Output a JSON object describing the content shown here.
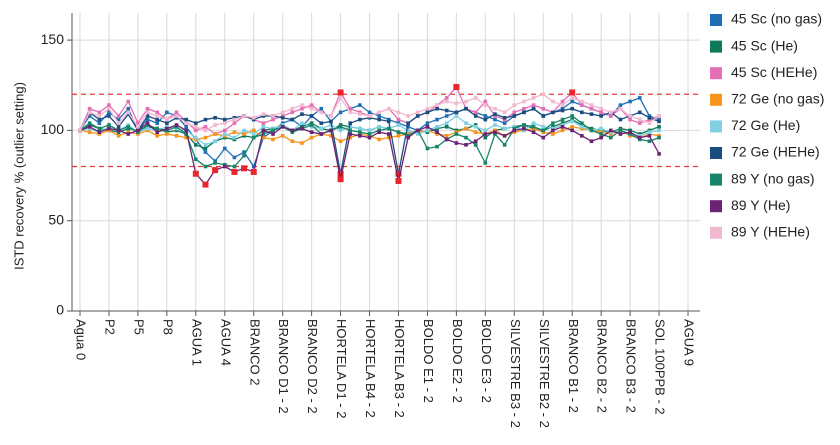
{
  "chart_data": {
    "type": "line",
    "y_label": "ISTD recovery % (outlier setting)",
    "categories": [
      "Agua 0",
      null,
      null,
      "P2",
      null,
      null,
      "P5",
      null,
      null,
      "P8",
      null,
      null,
      "AGUA 1",
      null,
      null,
      "AGUA 4",
      null,
      null,
      "BRANCO 2",
      null,
      null,
      "BRANCO D1 - 2",
      null,
      null,
      "BRANCO D2 - 2",
      null,
      null,
      "HORTELA D1 - 2",
      null,
      null,
      "HORTELA B4 - 2",
      null,
      null,
      "HORTELA B3 - 2",
      null,
      null,
      "BOLDO E1 - 2",
      null,
      null,
      "BOLDO E2 - 2",
      null,
      null,
      "BOLDO E3 - 2",
      null,
      null,
      "SILVESTRE B3 - 2",
      null,
      null,
      "SILVESTRE B2 - 2",
      null,
      null,
      "BRANCO B1 - 2",
      null,
      null,
      "BRANCO B2 - 2",
      null,
      null,
      "BRANCO B3 - 2",
      null,
      null,
      "SOL 100PPB - 2",
      null,
      null,
      "AGUA 9"
    ],
    "ylim": [
      0,
      165
    ],
    "yticks": [
      0,
      50,
      100,
      150
    ],
    "grid": true,
    "reference_lines": [
      80,
      120
    ],
    "reference_color": "#e53935",
    "outlier_color": "#e8262b",
    "series": [
      {
        "name": "45 Sc (no gas)",
        "color": "#1f6fb5",
        "values": [
          100,
          108,
          104,
          110,
          106,
          112,
          100,
          106,
          104,
          110,
          108,
          102,
          95,
          88,
          83,
          90,
          85,
          88,
          80,
          96,
          100,
          104,
          106,
          102,
          108,
          112,
          105,
          110,
          112,
          114,
          110,
          108,
          106,
          104,
          102,
          100,
          104,
          106,
          108,
          110,
          112,
          110,
          108,
          106,
          104,
          108,
          110,
          112,
          108,
          110,
          112,
          116,
          114,
          112,
          110,
          108,
          114,
          116,
          118,
          108,
          106,
          null,
          null,
          null
        ]
      },
      {
        "name": "45 Sc (He)",
        "color": "#0f7a5a",
        "values": [
          100,
          103,
          101,
          100,
          99,
          101,
          100,
          102,
          101,
          99,
          100,
          98,
          92,
          90,
          94,
          96,
          95,
          97,
          96,
          100,
          101,
          103,
          100,
          102,
          104,
          101,
          100,
          103,
          102,
          101,
          100,
          102,
          101,
          99,
          98,
          100,
          99,
          101,
          102,
          100,
          101,
          103,
          96,
          100,
          101,
          102,
          103,
          101,
          100,
          102,
          104,
          106,
          103,
          101,
          100,
          99,
          101,
          100,
          98,
          100,
          102,
          null,
          null,
          null
        ]
      },
      {
        "name": "45 Sc (HEHe)",
        "color": "#e56fb6",
        "values": [
          100,
          112,
          110,
          114,
          108,
          116,
          104,
          112,
          110,
          106,
          110,
          105,
          100,
          102,
          98,
          100,
          104,
          108,
          106,
          104,
          106,
          108,
          110,
          112,
          114,
          110,
          108,
          121,
          112,
          110,
          108,
          110,
          112,
          106,
          104,
          108,
          110,
          114,
          118,
          124,
          112,
          110,
          116,
          108,
          106,
          110,
          112,
          114,
          112,
          110,
          116,
          121,
          114,
          112,
          110,
          108,
          112,
          106,
          104,
          106,
          108,
          null,
          null,
          null
        ]
      },
      {
        "name": "72 Ge (no gas)",
        "color": "#f7941d",
        "values": [
          100,
          99,
          98,
          100,
          97,
          99,
          98,
          100,
          97,
          98,
          97,
          96,
          95,
          96,
          98,
          97,
          99,
          98,
          100,
          96,
          95,
          97,
          94,
          93,
          96,
          98,
          97,
          94,
          96,
          98,
          97,
          95,
          96,
          97,
          98,
          99,
          100,
          98,
          97,
          99,
          101,
          99,
          98,
          100,
          97,
          99,
          100,
          101,
          99,
          98,
          100,
          102,
          101,
          100,
          99,
          98,
          100,
          97,
          96,
          98,
          97,
          null,
          null,
          null
        ]
      },
      {
        "name": "72 Ge (He)",
        "color": "#7fd0e0",
        "values": [
          100,
          101,
          99,
          102,
          100,
          103,
          99,
          101,
          100,
          102,
          101,
          100,
          96,
          92,
          94,
          98,
          96,
          100,
          98,
          102,
          101,
          103,
          100,
          104,
          102,
          101,
          103,
          100,
          102,
          101,
          100,
          102,
          101,
          103,
          100,
          98,
          100,
          102,
          104,
          108,
          104,
          102,
          100,
          103,
          101,
          102,
          100,
          104,
          102,
          101,
          103,
          105,
          102,
          100,
          101,
          99,
          100,
          98,
          97,
          99,
          100,
          null,
          null,
          null
        ]
      },
      {
        "name": "72 Ge (HEHe)",
        "color": "#1a4d80",
        "values": [
          100,
          110,
          106,
          108,
          102,
          109,
          100,
          108,
          106,
          104,
          107,
          106,
          104,
          106,
          107,
          106,
          107,
          108,
          106,
          108,
          108,
          107,
          106,
          109,
          108,
          104,
          105,
          76,
          104,
          106,
          107,
          106,
          105,
          76,
          104,
          108,
          110,
          112,
          111,
          110,
          112,
          108,
          106,
          109,
          107,
          108,
          110,
          112,
          108,
          110,
          111,
          112,
          110,
          109,
          108,
          110,
          106,
          108,
          110,
          107,
          105,
          null,
          null,
          null
        ]
      },
      {
        "name": "89 Y (no gas)",
        "color": "#16856a",
        "values": [
          100,
          104,
          101,
          103,
          100,
          102,
          99,
          103,
          101,
          100,
          102,
          98,
          84,
          80,
          82,
          81,
          80,
          86,
          96,
          98,
          100,
          102,
          99,
          101,
          103,
          98,
          100,
          102,
          100,
          99,
          98,
          100,
          101,
          99,
          97,
          100,
          90,
          91,
          95,
          98,
          96,
          92,
          82,
          98,
          92,
          101,
          103,
          102,
          100,
          104,
          106,
          108,
          104,
          100,
          98,
          96,
          100,
          98,
          95,
          94,
          96,
          null,
          null,
          null
        ]
      },
      {
        "name": "89 Y (He)",
        "color": "#6b2273",
        "values": [
          100,
          102,
          99,
          101,
          100,
          98,
          100,
          104,
          99,
          101,
          103,
          100,
          76,
          70,
          78,
          80,
          77,
          79,
          77,
          100,
          98,
          102,
          100,
          101,
          99,
          98,
          100,
          73,
          98,
          97,
          96,
          99,
          98,
          72,
          96,
          100,
          102,
          99,
          95,
          93,
          92,
          94,
          98,
          99,
          97,
          100,
          101,
          99,
          96,
          100,
          102,
          100,
          97,
          94,
          96,
          100,
          98,
          99,
          96,
          97,
          87,
          null,
          null,
          null
        ]
      },
      {
        "name": "89 Y (HEHe)",
        "color": "#f2b8d0",
        "values": [
          100,
          110,
          108,
          112,
          104,
          110,
          102,
          110,
          108,
          106,
          108,
          104,
          102,
          100,
          103,
          104,
          106,
          108,
          107,
          109,
          108,
          110,
          112,
          114,
          112,
          110,
          108,
          118,
          110,
          109,
          108,
          110,
          112,
          110,
          108,
          110,
          112,
          114,
          116,
          115,
          116,
          118,
          114,
          112,
          110,
          114,
          116,
          118,
          120,
          116,
          114,
          118,
          116,
          114,
          112,
          110,
          112,
          108,
          106,
          104,
          108,
          null,
          null,
          null
        ]
      }
    ]
  }
}
